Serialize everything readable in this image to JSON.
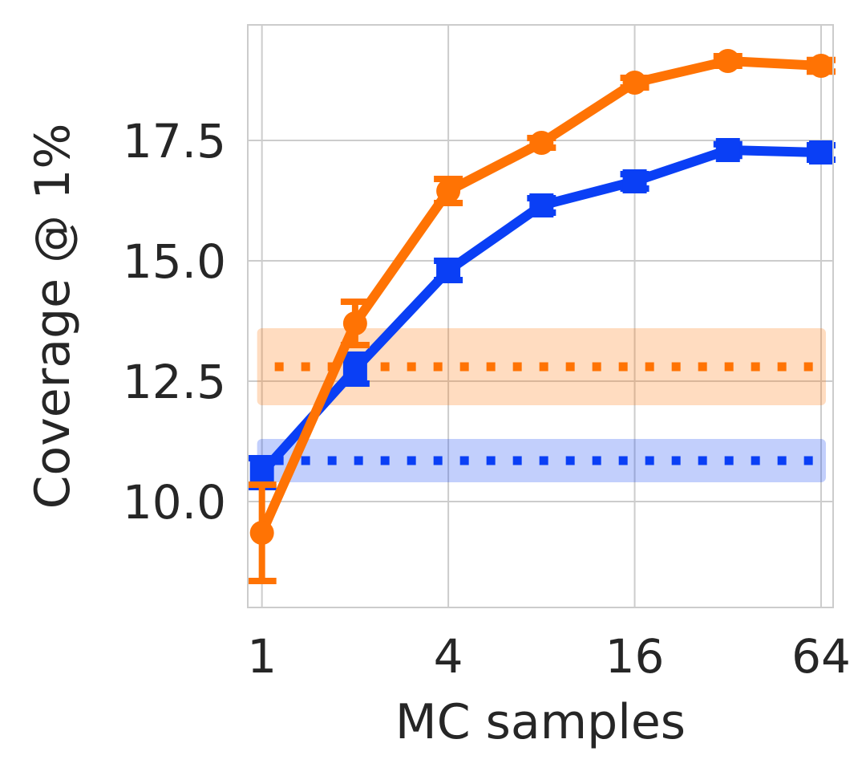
{
  "chart_data": {
    "type": "line",
    "xlabel": "MC samples",
    "ylabel": "Coverage @ 1%",
    "x_scale": "log2",
    "xlim": [
      0.9,
      70
    ],
    "ylim": [
      7.8,
      19.9
    ],
    "grid": true,
    "x_ticks": [
      {
        "value": 1,
        "label": "1"
      },
      {
        "value": 4,
        "label": "4"
      },
      {
        "value": 16,
        "label": "16"
      },
      {
        "value": 64,
        "label": "64"
      }
    ],
    "y_ticks": [
      {
        "value": 10.0,
        "label": "10.0"
      },
      {
        "value": 12.5,
        "label": "12.5"
      },
      {
        "value": 15.0,
        "label": "15.0"
      },
      {
        "value": 17.5,
        "label": "17.5"
      }
    ],
    "x": [
      1,
      2,
      4,
      8,
      16,
      32,
      64
    ],
    "series": [
      {
        "name": "blue",
        "color": "#0a3ff5",
        "marker": "square",
        "values": [
          10.6,
          12.75,
          14.8,
          16.15,
          16.65,
          17.3,
          17.25
        ],
        "errors": [
          0.3,
          0.3,
          0.2,
          0.15,
          0.15,
          0.12,
          0.15
        ]
      },
      {
        "name": "orange",
        "color": "#ff7304",
        "marker": "circle",
        "values": [
          9.35,
          13.7,
          16.45,
          17.45,
          18.7,
          19.15,
          19.05
        ],
        "errors": [
          1.0,
          0.45,
          0.25,
          0.1,
          0.1,
          0.1,
          0.12
        ]
      }
    ],
    "reference_bands": [
      {
        "name": "orange-baseline",
        "color": "#ff7304",
        "value": 12.8,
        "low": 12.0,
        "high": 13.6
      },
      {
        "name": "blue-baseline",
        "color": "#0a3ff5",
        "value": 10.85,
        "low": 10.4,
        "high": 11.3
      }
    ]
  }
}
